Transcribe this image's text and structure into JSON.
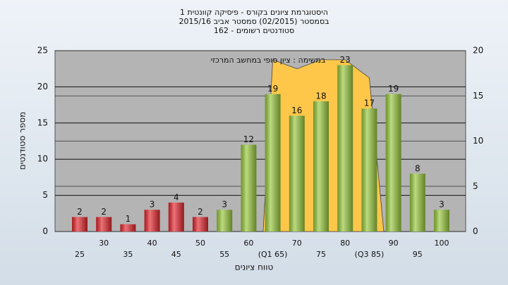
{
  "chart_data": {
    "type": "bar",
    "title_lines": [
      "היסטוגרמת ציונים בקורס - פיסיקה קוונטית 1",
      "בסמסטר  (02/2015)  סמסטר אביב 2015/16",
      "סטודנטים רשומים - 162"
    ],
    "annotation": "במשימה : ציון סופי במחשב המרכזי",
    "y_label": "מספר סטודנטים",
    "x_label": "טווח ציונים",
    "categories": [
      "25",
      "30",
      "35",
      "40",
      "45",
      "50",
      "55",
      "60",
      "(Q1 65)",
      "70",
      "75",
      "80",
      "(Q3 85)",
      "90",
      "95",
      "100"
    ],
    "x": [
      25,
      30,
      35,
      40,
      45,
      50,
      55,
      60,
      65,
      70,
      75,
      80,
      85,
      90,
      95,
      100
    ],
    "values": [
      2,
      2,
      1,
      3,
      4,
      2,
      3,
      12,
      19,
      16,
      18,
      23,
      17,
      19,
      8,
      3
    ],
    "colors": [
      "#e3262d",
      "#e3262d",
      "#e3262d",
      "#e3262d",
      "#e3262d",
      "#e3262d",
      "#98c83c",
      "#98c83c",
      "#98c83c",
      "#98c83c",
      "#98c83c",
      "#98c83c",
      "#98c83c",
      "#98c83c",
      "#98c83c",
      "#98c83c"
    ],
    "area": {
      "x": [
        63,
        65,
        70,
        75,
        80,
        85,
        88
      ],
      "values": [
        0,
        19,
        18,
        19,
        19,
        17,
        0
      ],
      "color": "#ffc74a",
      "axis": "y2"
    },
    "ylim": [
      0,
      25
    ],
    "yticks": [
      0,
      5,
      10,
      15,
      20,
      25
    ],
    "y2lim": [
      0,
      20
    ],
    "y2ticks": [
      0,
      5,
      10,
      15,
      20
    ],
    "grid": true
  }
}
